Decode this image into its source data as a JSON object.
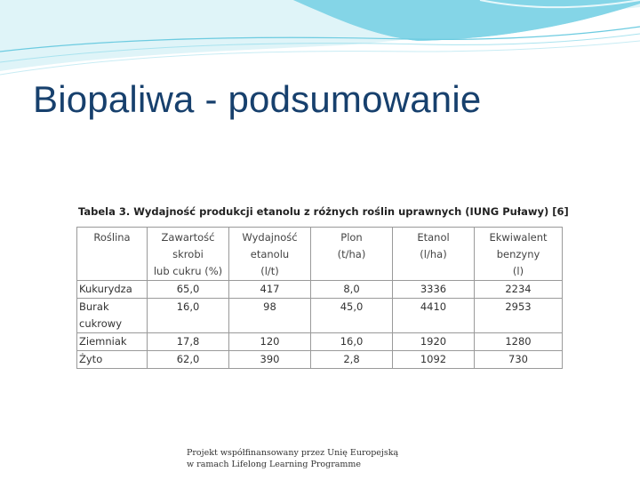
{
  "slide": {
    "title": "Biopaliwa - podsumowanie",
    "colors": {
      "title": "#17406d",
      "wave_dark": "#7fd3e6",
      "wave_light": "#d5f1f6"
    }
  },
  "table": {
    "caption": "Tabela 3. Wydajność produkcji etanolu z różnych roślin uprawnych (IUNG Puławy) [6]",
    "headers": [
      [
        "Roślina"
      ],
      [
        "Zawartość skrobi",
        "lub cukru (%)"
      ],
      [
        "Wydajność",
        "etanolu",
        "(l/t)"
      ],
      [
        "Plon",
        "(t/ha)"
      ],
      [
        "Etanol",
        "(l/ha)"
      ],
      [
        "Ekwiwalent",
        "benzyny",
        "(l)"
      ]
    ],
    "rows": [
      {
        "plant": [
          "Kukurydza"
        ],
        "values": [
          "65,0",
          "417",
          "8,0",
          "3336",
          "2234"
        ]
      },
      {
        "plant": [
          "Burak",
          "cukrowy"
        ],
        "values": [
          "16,0",
          "98",
          "45,0",
          "4410",
          "2953"
        ]
      },
      {
        "plant": [
          "Ziemniak"
        ],
        "values": [
          "17,8",
          "120",
          "16,0",
          "1920",
          "1280"
        ]
      },
      {
        "plant": [
          "Żyto"
        ],
        "values": [
          "62,0",
          "390",
          "2,8",
          "1092",
          "730"
        ]
      }
    ]
  },
  "footer": {
    "line1": "Projekt współfinansowany przez Unię Europejską",
    "line2": "w ramach Lifelong Learning Programme"
  }
}
